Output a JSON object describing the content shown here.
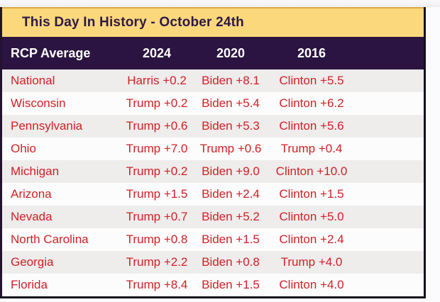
{
  "chart_data": {
    "type": "table",
    "title": "This Day In History - October 24th",
    "columns": [
      "RCP Average",
      "2024",
      "2020",
      "2016"
    ],
    "rows": [
      [
        "National",
        "Harris +0.2",
        "Biden +8.1",
        "Clinton +5.5"
      ],
      [
        "Wisconsin",
        "Trump +0.2",
        "Biden +5.4",
        "Clinton +6.2"
      ],
      [
        "Pennsylvania",
        "Trump +0.6",
        "Biden +5.3",
        "Clinton +5.6"
      ],
      [
        "Ohio",
        "Trump +7.0",
        "Trump +0.6",
        "Trump +0.4"
      ],
      [
        "Michigan",
        "Trump +0.2",
        "Biden +9.0",
        "Clinton +10.0"
      ],
      [
        "Arizona",
        "Trump +1.5",
        "Biden +2.4",
        "Clinton +1.5"
      ],
      [
        "Nevada",
        "Trump +0.7",
        "Biden +5.2",
        "Clinton +5.0"
      ],
      [
        "North Carolina",
        "Trump +0.8",
        "Biden +1.5",
        "Clinton +2.4"
      ],
      [
        "Georgia",
        "Trump +2.2",
        "Biden +0.8",
        "Trump +4.0"
      ],
      [
        "Florida",
        "Trump +8.4",
        "Biden +1.5",
        "Clinton +4.0"
      ]
    ]
  },
  "colors": {
    "title_bar_bg": "#fcd87c",
    "title_bar_top_border": "#d9ab3e",
    "title_text": "#2e1a47",
    "header_bg": "#2b1441",
    "header_text": "#ffffff",
    "value_text": "#d12026",
    "row_alt_bg": "#efecec",
    "row_bg": "#fdfcfc",
    "frame_left_border": "#231230",
    "frame_dark_border": "#16111c"
  }
}
